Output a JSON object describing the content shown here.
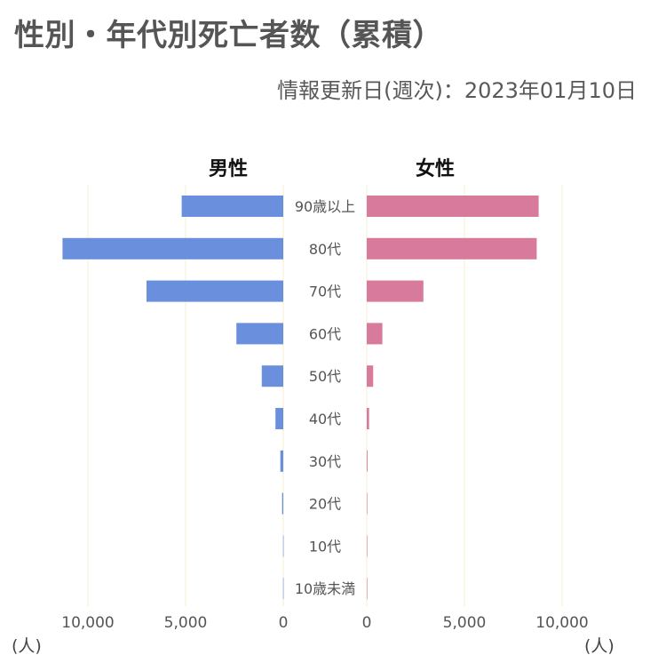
{
  "header": {
    "title": "性別・年代別死亡者数（累積）",
    "updated": "情報更新日(週次)：2023年01月10日"
  },
  "genders": {
    "male": "男性",
    "female": "女性"
  },
  "units": {
    "left": "(人)",
    "right": "(人)"
  },
  "colors": {
    "male": "#6a8fdd",
    "female": "#d87a9b",
    "grid": "#f4efcf",
    "text": "#555555"
  },
  "chart_data": {
    "type": "bar",
    "orientation": "horizontal-diverging",
    "categories": [
      "90歳以上",
      "80代",
      "70代",
      "60代",
      "50代",
      "40代",
      "30代",
      "20代",
      "10代",
      "10歳未満"
    ],
    "series": [
      {
        "name": "男性",
        "values": [
          5200,
          11300,
          7000,
          2400,
          1100,
          400,
          150,
          60,
          10,
          10
        ]
      },
      {
        "name": "女性",
        "values": [
          8800,
          8700,
          2900,
          800,
          330,
          120,
          40,
          20,
          5,
          5
        ]
      }
    ],
    "xlim": [
      0,
      10000
    ],
    "xticks": [
      "10,000",
      "5,000",
      "0",
      "0",
      "5,000",
      "10,000"
    ],
    "grid": true
  }
}
